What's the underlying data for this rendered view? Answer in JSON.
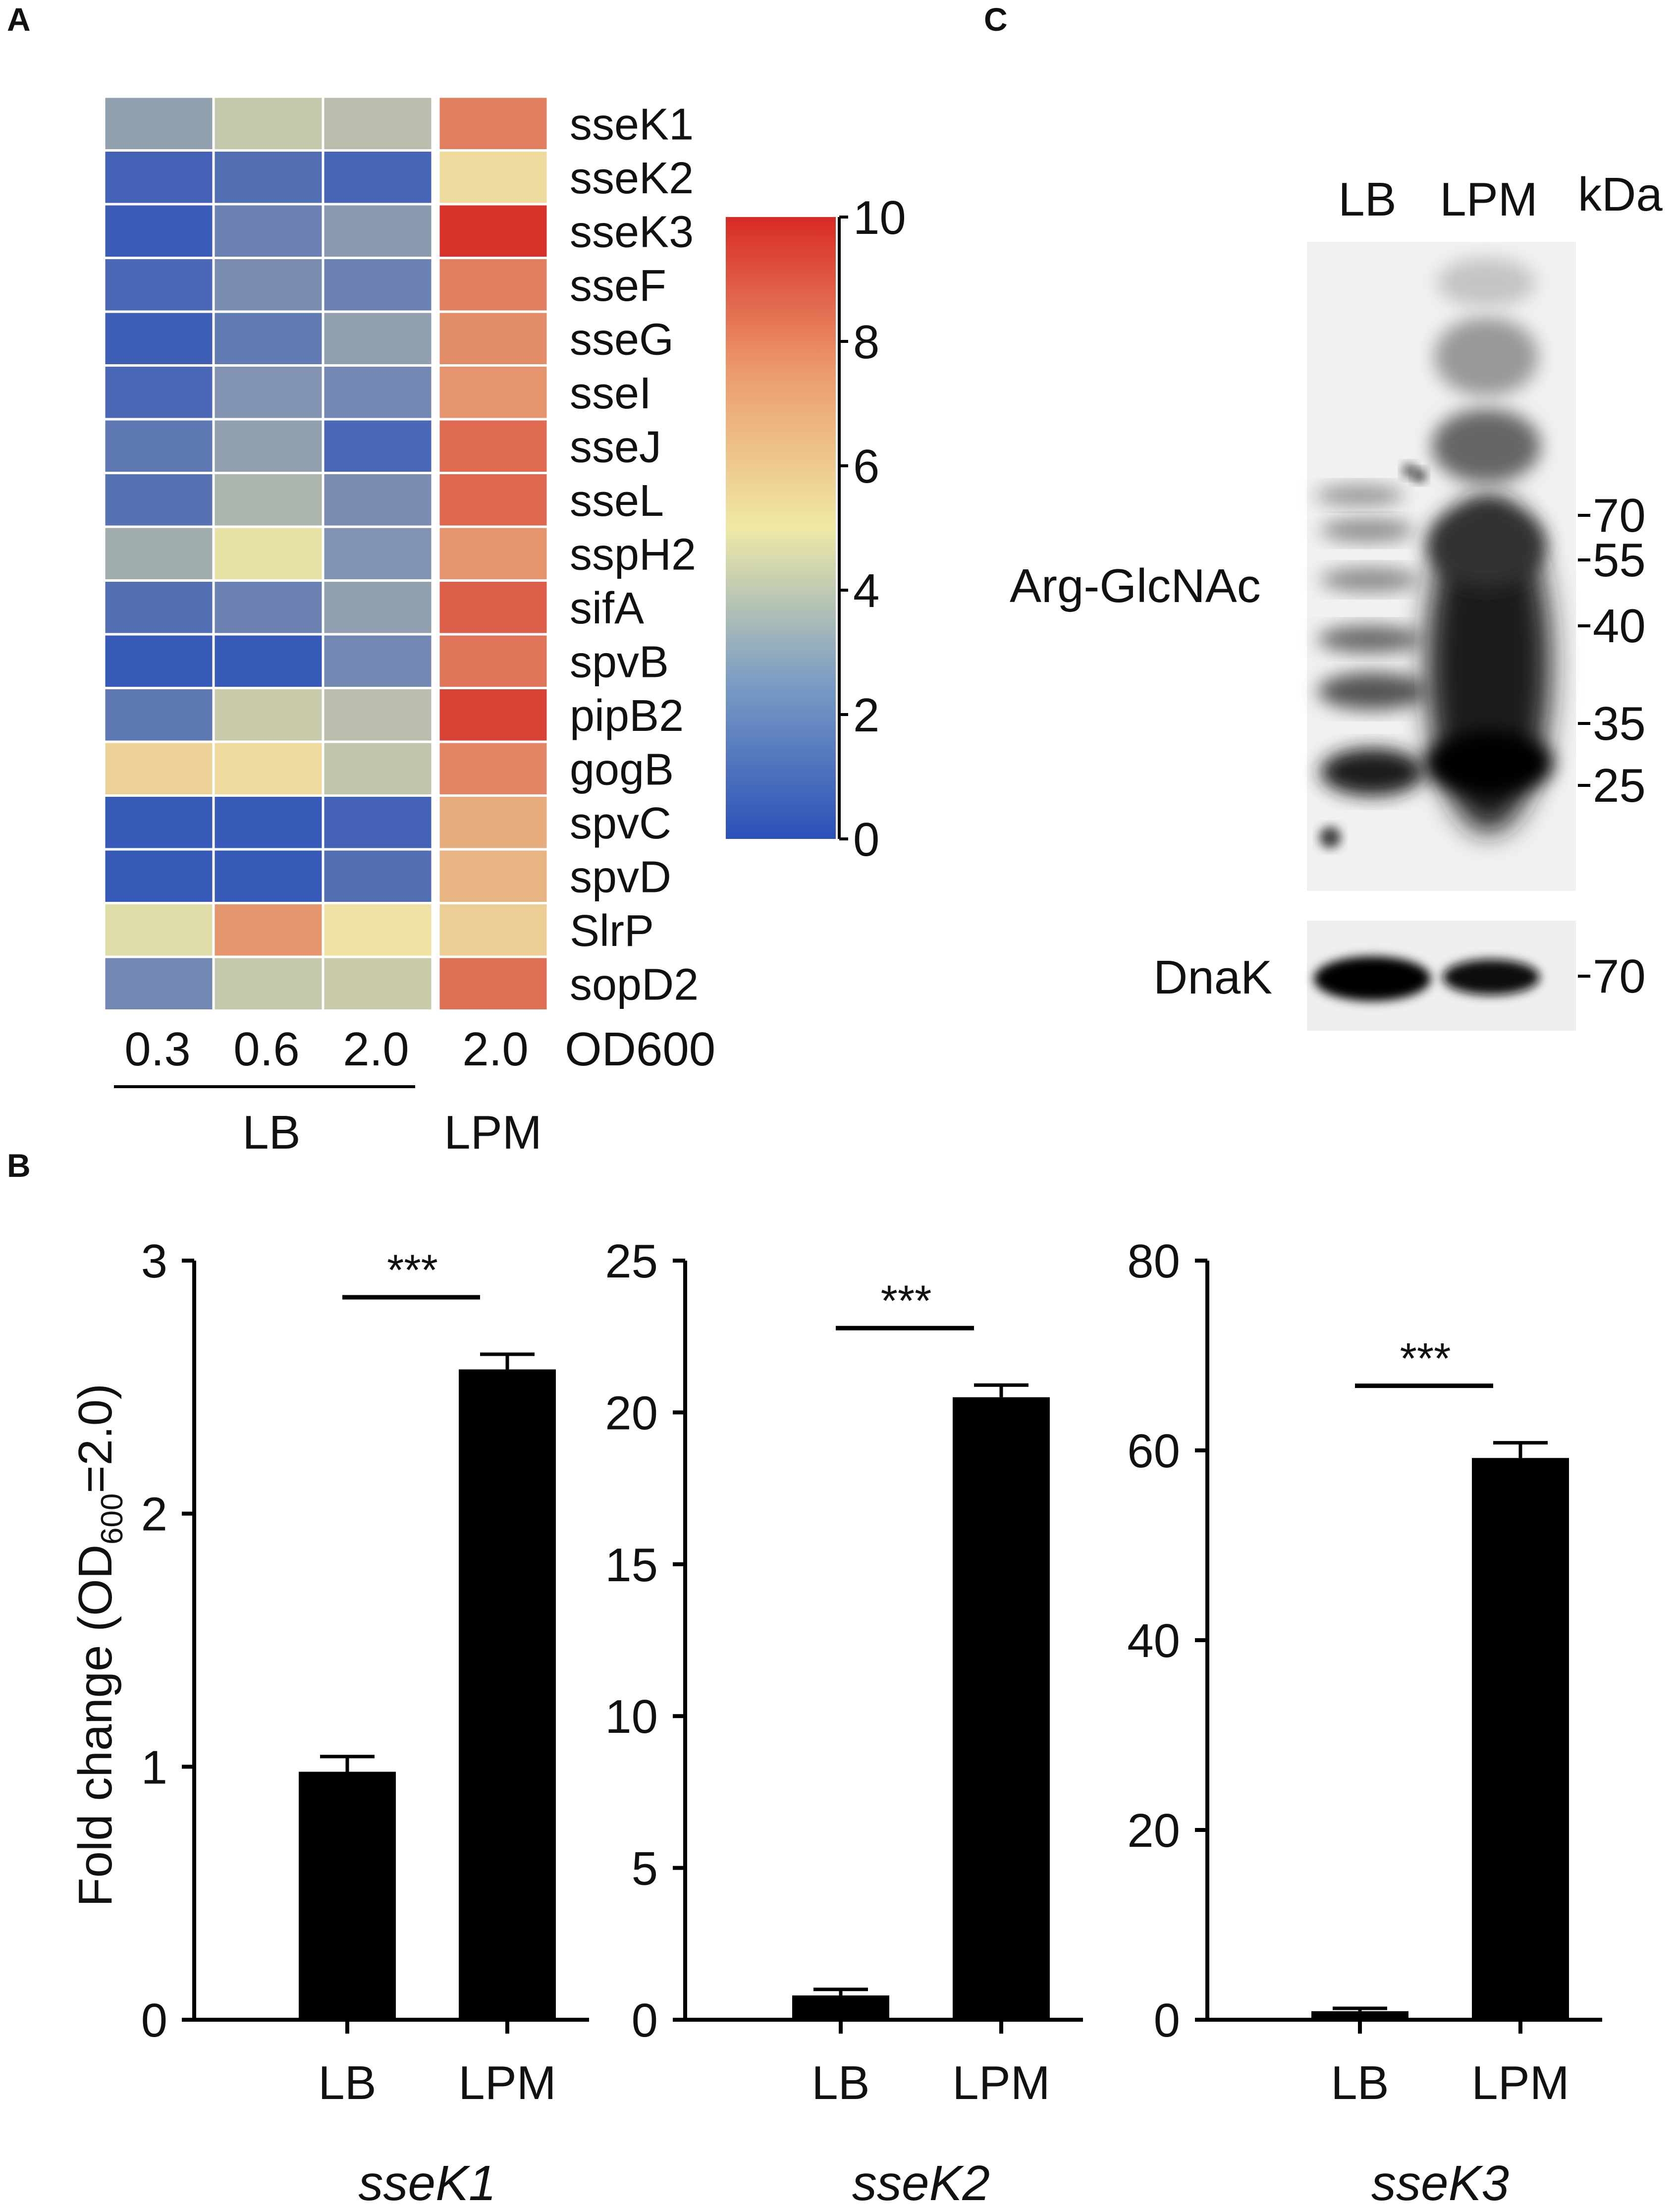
{
  "panels": {
    "a": {
      "label": "A",
      "genes": [
        "sseK1",
        "sseK2",
        "sseK3",
        "sseF",
        "sseG",
        "sseI",
        "sseJ",
        "sseL",
        "sspH2",
        "sifA",
        "spvB",
        "pipB2",
        "gogB",
        "spvC",
        "spvD",
        "SlrP",
        "sopD2"
      ],
      "columns": [
        "0.3",
        "0.6",
        "2.0",
        "2.0"
      ],
      "column_axis_label": "OD600",
      "groups": [
        "LB",
        "LPM"
      ],
      "values": [
        [
          2.6,
          3.9,
          3.6,
          7.8
        ],
        [
          0.6,
          1.0,
          0.7,
          5.4
        ],
        [
          0.4,
          1.6,
          2.4,
          9.8
        ],
        [
          0.8,
          2.0,
          1.6,
          7.8
        ],
        [
          0.5,
          1.4,
          2.6,
          7.4
        ],
        [
          0.8,
          2.2,
          1.8,
          7.2
        ],
        [
          1.3,
          2.6,
          0.8,
          8.3
        ],
        [
          1.1,
          3.3,
          2.0,
          8.4
        ],
        [
          3.0,
          4.8,
          2.2,
          7.2
        ],
        [
          1.0,
          1.6,
          2.6,
          8.6
        ],
        [
          0.3,
          0.3,
          1.8,
          8.0
        ],
        [
          1.3,
          4.0,
          3.6,
          9.4
        ],
        [
          5.6,
          5.4,
          3.8,
          7.6
        ],
        [
          0.3,
          0.3,
          0.6,
          6.6
        ],
        [
          0.3,
          0.3,
          1.0,
          6.4
        ],
        [
          4.6,
          7.2,
          5.2,
          5.7
        ],
        [
          1.8,
          3.9,
          4.0,
          8.2
        ]
      ],
      "colorbar_ticks": [
        "10",
        "8",
        "6",
        "4",
        "2",
        "0"
      ],
      "colorbar_range": [
        0,
        10
      ],
      "colors": {
        "low": "#2b50b8",
        "mid": "#efe9a6",
        "high": "#d62a25"
      }
    },
    "b": {
      "label": "B",
      "y_axis_title_main": "Fold change (OD",
      "y_axis_title_sub": "600",
      "y_axis_title_end": "=2.0)",
      "significance": "***",
      "bar_color": "#000000"
    },
    "c": {
      "label": "C",
      "lanes": [
        "LB",
        "LPM"
      ],
      "unit": "kDa",
      "top_blot_label": "Arg-GlcNAc",
      "bottom_blot_label": "DnaK",
      "top_markers": [
        "70",
        "55",
        "40",
        "35",
        "25"
      ],
      "bottom_markers": [
        "70"
      ]
    }
  },
  "chart_data": [
    {
      "type": "heatmap",
      "title": "",
      "rows": [
        "sseK1",
        "sseK2",
        "sseK3",
        "sseF",
        "sseG",
        "sseI",
        "sseJ",
        "sseL",
        "sspH2",
        "sifA",
        "spvB",
        "pipB2",
        "gogB",
        "spvC",
        "spvD",
        "SlrP",
        "sopD2"
      ],
      "columns": [
        "LB 0.3",
        "LB 0.6",
        "LB 2.0",
        "LPM 2.0"
      ],
      "xlabel": "OD600",
      "scale": [
        0,
        10
      ]
    },
    {
      "type": "bar",
      "xlabel": "sseK1",
      "ylabel": "Fold change (OD600=2.0)",
      "categories": [
        "LB",
        "LPM"
      ],
      "values": [
        0.98,
        2.57
      ],
      "errors": [
        0.06,
        0.06
      ],
      "ylim": [
        0,
        3
      ],
      "yticks": [
        "0",
        "1",
        "2",
        "3"
      ],
      "annotation": "***"
    },
    {
      "type": "bar",
      "xlabel": "sseK2",
      "ylabel": "",
      "categories": [
        "LB",
        "LPM"
      ],
      "values": [
        0.8,
        20.5
      ],
      "errors": [
        0.2,
        0.4
      ],
      "ylim": [
        0,
        25
      ],
      "yticks": [
        "0",
        "5",
        "10",
        "15",
        "20",
        "25"
      ],
      "annotation": "***"
    },
    {
      "type": "bar",
      "xlabel": "sseK3",
      "ylabel": "",
      "categories": [
        "LB",
        "LPM"
      ],
      "values": [
        0.9,
        59.2
      ],
      "errors": [
        0.3,
        1.6
      ],
      "ylim": [
        0,
        80
      ],
      "yticks": [
        "0",
        "20",
        "40",
        "60",
        "80"
      ],
      "annotation": "***"
    }
  ]
}
